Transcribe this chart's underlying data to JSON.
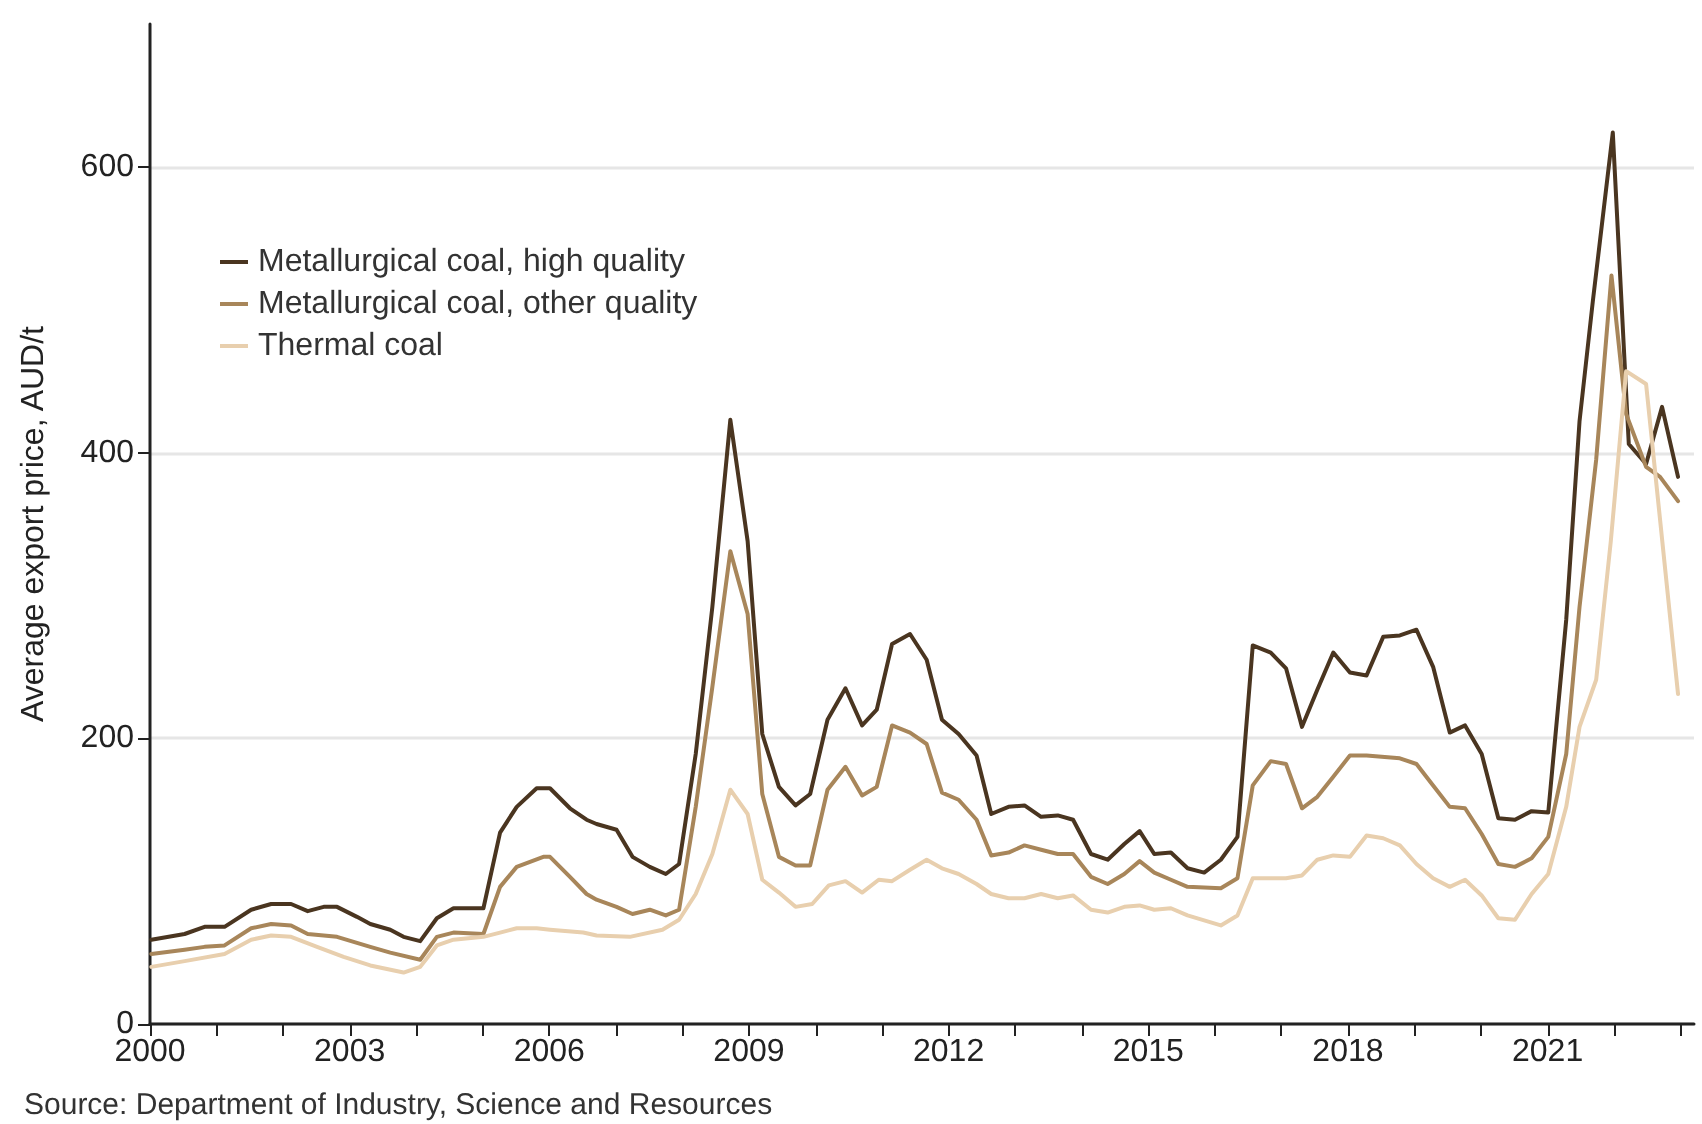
{
  "chart_data": {
    "type": "line",
    "ylabel": "Average export price, AUD/t",
    "annotations": [
      "Source: Department of Industry, Science and Resources"
    ],
    "xlim": [
      2000,
      2023.2
    ],
    "xticks": [
      2000,
      {
        "value": 2001,
        "label": null
      },
      {
        "value": 2002,
        "label": null
      },
      2003,
      {
        "value": 2004,
        "label": null
      },
      {
        "value": 2005,
        "label": null
      },
      2006,
      {
        "value": 2007,
        "label": null
      },
      {
        "value": 2008,
        "label": null
      },
      2009,
      {
        "value": 2010,
        "label": null
      },
      {
        "value": 2011,
        "label": null
      },
      2012,
      {
        "value": 2013,
        "label": null
      },
      {
        "value": 2014,
        "label": null
      },
      2015,
      {
        "value": 2016,
        "label": null
      },
      {
        "value": 2017,
        "label": null
      },
      2018,
      {
        "value": 2019,
        "label": null
      },
      {
        "value": 2020,
        "label": null
      },
      2021,
      {
        "value": 2022,
        "label": null
      },
      {
        "value": 2023,
        "label": null
      }
    ],
    "ylim": [
      0,
      700
    ],
    "yticks": [
      0,
      200,
      400,
      600
    ],
    "grid": "y",
    "legend": "top left",
    "marker": "none",
    "line_style": "solid",
    "series": [
      {
        "name": "Metallurgical coal, high quality",
        "color": "#4a3520",
        "x": [
          2000.02,
          2000.52,
          2000.82,
          2001.12,
          2001.52,
          2001.82,
          2002.12,
          2002.37,
          2002.61,
          2002.81,
          2003.11,
          2003.31,
          2003.61,
          2003.81,
          2004.06,
          2004.31,
          2004.56,
          2005.01,
          2005.26,
          2005.51,
          2005.81,
          2006.01,
          2006.31,
          2006.56,
          2006.71,
          2007.01,
          2007.25,
          2007.51,
          2007.75,
          2007.95,
          2008.2,
          2008.45,
          2008.72,
          2008.98,
          2009.2,
          2009.45,
          2009.7,
          2009.92,
          2010.18,
          2010.45,
          2010.7,
          2010.92,
          2011.15,
          2011.42,
          2011.67,
          2011.9,
          2012.15,
          2012.42,
          2012.64,
          2012.9,
          2013.14,
          2013.39,
          2013.64,
          2013.87,
          2014.14,
          2014.39,
          2014.64,
          2014.87,
          2015.09,
          2015.34,
          2015.59,
          2015.84,
          2016.09,
          2016.34,
          2016.57,
          2016.84,
          2017.07,
          2017.31,
          2017.54,
          2017.78,
          2018.03,
          2018.28,
          2018.53,
          2018.78,
          2019.03,
          2019.28,
          2019.53,
          2019.76,
          2020.01,
          2020.26,
          2020.51,
          2020.76,
          2021.01,
          2021.28,
          2021.48,
          2021.68,
          2021.98,
          2022.22,
          2022.48,
          2022.72,
          2022.96
        ],
        "values": [
          59,
          63,
          68,
          68,
          80,
          84,
          84,
          79,
          82,
          82,
          75,
          70,
          66,
          61,
          58,
          74,
          81,
          81,
          134,
          152,
          165,
          165,
          151,
          143,
          140,
          136,
          117,
          110,
          105,
          112,
          189,
          292,
          423,
          338,
          203,
          166,
          153,
          161,
          213,
          235,
          209,
          220,
          266,
          273,
          255,
          213,
          203,
          188,
          147,
          152,
          153,
          145,
          146,
          143,
          119,
          115,
          126,
          135,
          119,
          120,
          109,
          106,
          115,
          131,
          265,
          260,
          249,
          208,
          234,
          260,
          246,
          244,
          271,
          272,
          276,
          250,
          204,
          209,
          189,
          144,
          143,
          149,
          148,
          283,
          422,
          506,
          624,
          406,
          392,
          432,
          383
        ]
      },
      {
        "name": "Metallurgical coal, other quality",
        "color": "#a8865a",
        "x": [
          2000.02,
          2000.52,
          2000.82,
          2001.12,
          2001.52,
          2001.82,
          2002.12,
          2002.37,
          2002.81,
          2003.31,
          2003.61,
          2004.06,
          2004.31,
          2004.56,
          2005.01,
          2005.26,
          2005.51,
          2005.91,
          2006.01,
          2006.31,
          2006.56,
          2006.71,
          2007.01,
          2007.25,
          2007.51,
          2007.75,
          2007.95,
          2008.2,
          2008.45,
          2008.72,
          2008.98,
          2009.2,
          2009.45,
          2009.7,
          2009.92,
          2010.18,
          2010.45,
          2010.7,
          2010.92,
          2011.15,
          2011.42,
          2011.67,
          2011.9,
          2012.15,
          2012.42,
          2012.64,
          2012.9,
          2013.14,
          2013.39,
          2013.64,
          2013.87,
          2014.14,
          2014.39,
          2014.64,
          2014.87,
          2015.09,
          2015.34,
          2015.59,
          2016.09,
          2016.34,
          2016.57,
          2016.84,
          2017.07,
          2017.31,
          2017.54,
          2017.78,
          2018.03,
          2018.28,
          2018.78,
          2019.03,
          2019.28,
          2019.53,
          2019.76,
          2020.01,
          2020.26,
          2020.51,
          2020.76,
          2021.01,
          2021.28,
          2021.48,
          2021.73,
          2021.96,
          2022.18,
          2022.48,
          2022.69,
          2022.96
        ],
        "values": [
          49,
          52,
          54,
          55,
          67,
          70,
          69,
          63,
          61,
          54,
          50,
          45,
          61,
          64,
          63,
          96,
          110,
          117,
          117,
          103,
          91,
          87,
          82,
          77,
          80,
          76,
          80,
          152,
          236,
          331,
          287,
          161,
          117,
          111,
          111,
          164,
          180,
          160,
          166,
          209,
          204,
          196,
          162,
          157,
          143,
          118,
          120,
          125,
          122,
          119,
          119,
          103,
          98,
          105,
          114,
          106,
          101,
          96,
          95,
          102,
          167,
          184,
          182,
          151,
          159,
          173,
          188,
          188,
          186,
          182,
          167,
          152,
          151,
          133,
          112,
          110,
          116,
          131,
          189,
          292,
          395,
          524,
          427,
          390,
          383,
          366
        ]
      },
      {
        "name": "Thermal coal",
        "color": "#e8cfae",
        "x": [
          2000.02,
          2000.52,
          2001.12,
          2001.52,
          2001.82,
          2002.12,
          2002.51,
          2002.91,
          2003.31,
          2003.81,
          2004.06,
          2004.31,
          2004.56,
          2005.01,
          2005.26,
          2005.51,
          2005.81,
          2006.01,
          2006.51,
          2006.71,
          2007.21,
          2007.7,
          2007.95,
          2008.2,
          2008.45,
          2008.72,
          2008.98,
          2009.2,
          2009.45,
          2009.7,
          2009.95,
          2010.2,
          2010.45,
          2010.7,
          2010.95,
          2011.15,
          2011.42,
          2011.67,
          2011.9,
          2012.15,
          2012.42,
          2012.64,
          2012.9,
          2013.14,
          2013.39,
          2013.64,
          2013.87,
          2014.14,
          2014.39,
          2014.64,
          2014.87,
          2015.09,
          2015.34,
          2015.59,
          2016.09,
          2016.34,
          2016.57,
          2017.07,
          2017.31,
          2017.54,
          2017.78,
          2018.03,
          2018.28,
          2018.53,
          2018.78,
          2019.03,
          2019.28,
          2019.53,
          2019.76,
          2020.01,
          2020.26,
          2020.51,
          2020.76,
          2021.01,
          2021.28,
          2021.48,
          2021.73,
          2021.95,
          2022.18,
          2022.48,
          2022.96
        ],
        "values": [
          40,
          44,
          49,
          59,
          62,
          61,
          54,
          47,
          41,
          36,
          40,
          55,
          59,
          61,
          64,
          67,
          67,
          66,
          64,
          62,
          61,
          66,
          73,
          91,
          119,
          164,
          147,
          101,
          92,
          82,
          84,
          97,
          100,
          92,
          101,
          100,
          108,
          115,
          109,
          105,
          98,
          91,
          88,
          88,
          91,
          88,
          90,
          80,
          78,
          82,
          83,
          80,
          81,
          76,
          69,
          76,
          102,
          102,
          104,
          115,
          118,
          117,
          132,
          130,
          125,
          112,
          102,
          96,
          101,
          90,
          74,
          73,
          91,
          105,
          152,
          208,
          241,
          338,
          457,
          448,
          231
        ]
      }
    ]
  }
}
